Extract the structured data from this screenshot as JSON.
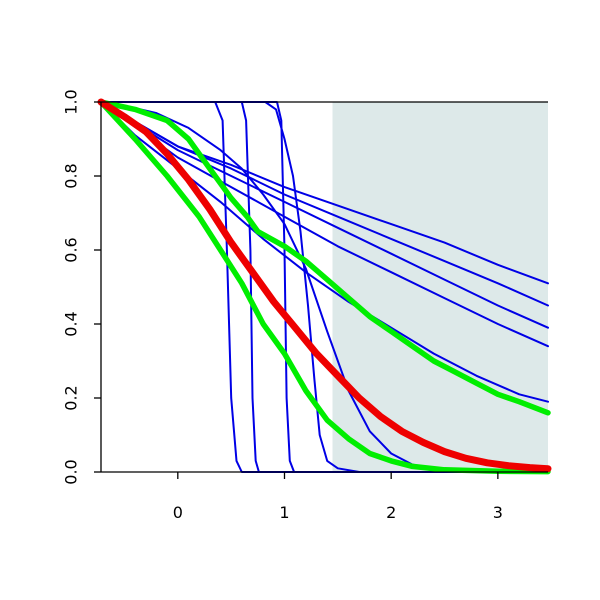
{
  "chart_data": {
    "type": "line",
    "title": "",
    "xlabel": "",
    "ylabel": "",
    "xlim": [
      -0.72,
      3.47
    ],
    "ylim": [
      0,
      1
    ],
    "grid": false,
    "legend": "none",
    "x_ticks": [
      0,
      1,
      2,
      3
    ],
    "x_tick_labels": [
      "0",
      "1",
      "2",
      "3"
    ],
    "y_ticks": [
      0,
      0.2,
      0.4,
      0.6,
      0.8,
      1
    ],
    "y_tick_labels": [
      "0.0",
      "0.2",
      "0.4",
      "0.6",
      "0.8",
      "1.0"
    ],
    "shaded_region": {
      "x": [
        1.45,
        3.47
      ],
      "color": "#dde9e9"
    },
    "colors": {
      "blue": "#0000e6",
      "green": "#00ee00",
      "red": "#ee0000"
    },
    "series": [
      {
        "color": "blue",
        "width": "thin",
        "points": [
          [
            -0.72,
            1
          ],
          [
            0.35,
            1
          ],
          [
            0.42,
            0.95
          ],
          [
            0.46,
            0.6
          ],
          [
            0.5,
            0.2
          ],
          [
            0.55,
            0.03
          ],
          [
            0.6,
            0
          ],
          [
            3.47,
            0
          ]
        ]
      },
      {
        "color": "blue",
        "width": "thin",
        "points": [
          [
            -0.72,
            1
          ],
          [
            0.6,
            1
          ],
          [
            0.64,
            0.95
          ],
          [
            0.68,
            0.6
          ],
          [
            0.7,
            0.2
          ],
          [
            0.73,
            0.03
          ],
          [
            0.76,
            0
          ],
          [
            3.47,
            0
          ]
        ]
      },
      {
        "color": "blue",
        "width": "thin",
        "points": [
          [
            -0.72,
            1
          ],
          [
            0.93,
            1
          ],
          [
            0.97,
            0.95
          ],
          [
            1.0,
            0.6
          ],
          [
            1.02,
            0.2
          ],
          [
            1.05,
            0.03
          ],
          [
            1.09,
            0
          ],
          [
            3.47,
            0
          ]
        ]
      },
      {
        "color": "blue",
        "width": "thin",
        "points": [
          [
            -0.72,
            1
          ],
          [
            0.82,
            1
          ],
          [
            0.92,
            0.98
          ],
          [
            1.0,
            0.9
          ],
          [
            1.08,
            0.8
          ],
          [
            1.15,
            0.65
          ],
          [
            1.22,
            0.45
          ],
          [
            1.28,
            0.25
          ],
          [
            1.33,
            0.1
          ],
          [
            1.4,
            0.03
          ],
          [
            1.5,
            0.01
          ],
          [
            1.7,
            0
          ],
          [
            3.47,
            0
          ]
        ]
      },
      {
        "color": "blue",
        "width": "thin",
        "points": [
          [
            -0.72,
            1
          ],
          [
            -0.5,
            0.99
          ],
          [
            -0.2,
            0.97
          ],
          [
            0.1,
            0.93
          ],
          [
            0.4,
            0.87
          ],
          [
            0.6,
            0.82
          ],
          [
            0.8,
            0.75
          ],
          [
            1.0,
            0.67
          ],
          [
            1.2,
            0.55
          ],
          [
            1.4,
            0.38
          ],
          [
            1.6,
            0.22
          ],
          [
            1.8,
            0.11
          ],
          [
            2.0,
            0.05
          ],
          [
            2.2,
            0.02
          ],
          [
            2.5,
            0.005
          ],
          [
            3.47,
            0
          ]
        ]
      },
      {
        "color": "blue",
        "width": "thin",
        "points": [
          [
            -0.72,
            1
          ],
          [
            -0.4,
            0.91
          ],
          [
            0,
            0.82
          ],
          [
            0.4,
            0.73
          ],
          [
            0.8,
            0.63
          ],
          [
            1.2,
            0.54
          ],
          [
            1.6,
            0.46
          ],
          [
            2.0,
            0.39
          ],
          [
            2.4,
            0.32
          ],
          [
            2.8,
            0.26
          ],
          [
            3.2,
            0.21
          ],
          [
            3.47,
            0.19
          ]
        ]
      },
      {
        "color": "blue",
        "width": "thin",
        "points": [
          [
            -0.72,
            1
          ],
          [
            0,
            0.85
          ],
          [
            0.5,
            0.77
          ],
          [
            1.0,
            0.69
          ],
          [
            1.5,
            0.61
          ],
          [
            2.0,
            0.54
          ],
          [
            2.5,
            0.47
          ],
          [
            3.0,
            0.4
          ],
          [
            3.47,
            0.34
          ]
        ]
      },
      {
        "color": "blue",
        "width": "thin",
        "points": [
          [
            -0.72,
            1
          ],
          [
            0,
            0.87
          ],
          [
            0.5,
            0.8
          ],
          [
            1.0,
            0.73
          ],
          [
            1.5,
            0.66
          ],
          [
            2.0,
            0.59
          ],
          [
            2.5,
            0.52
          ],
          [
            3.0,
            0.45
          ],
          [
            3.47,
            0.39
          ]
        ]
      },
      {
        "color": "blue",
        "width": "thin",
        "points": [
          [
            -0.72,
            1
          ],
          [
            0,
            0.88
          ],
          [
            0.5,
            0.82
          ],
          [
            1.0,
            0.75
          ],
          [
            1.5,
            0.69
          ],
          [
            2.0,
            0.63
          ],
          [
            2.5,
            0.57
          ],
          [
            3.0,
            0.51
          ],
          [
            3.47,
            0.45
          ]
        ]
      },
      {
        "color": "blue",
        "width": "thin",
        "points": [
          [
            -0.72,
            1
          ],
          [
            0,
            0.88
          ],
          [
            0.5,
            0.83
          ],
          [
            1.0,
            0.77
          ],
          [
            1.5,
            0.72
          ],
          [
            2.0,
            0.67
          ],
          [
            2.5,
            0.62
          ],
          [
            3.0,
            0.56
          ],
          [
            3.47,
            0.51
          ]
        ]
      },
      {
        "color": "green",
        "width": "thick",
        "points": [
          [
            -0.72,
            1
          ],
          [
            -0.4,
            0.9
          ],
          [
            -0.1,
            0.8
          ],
          [
            0.2,
            0.69
          ],
          [
            0.4,
            0.6
          ],
          [
            0.6,
            0.51
          ],
          [
            0.8,
            0.4
          ],
          [
            1.0,
            0.32
          ],
          [
            1.2,
            0.22
          ],
          [
            1.4,
            0.14
          ],
          [
            1.6,
            0.09
          ],
          [
            1.8,
            0.05
          ],
          [
            2.0,
            0.03
          ],
          [
            2.2,
            0.015
          ],
          [
            2.5,
            0.006
          ],
          [
            3.0,
            0.002
          ],
          [
            3.47,
            0.001
          ]
        ]
      },
      {
        "color": "green",
        "width": "thick",
        "points": [
          [
            -0.72,
            1
          ],
          [
            -0.4,
            0.98
          ],
          [
            -0.1,
            0.95
          ],
          [
            0.1,
            0.9
          ],
          [
            0.3,
            0.82
          ],
          [
            0.5,
            0.74
          ],
          [
            0.65,
            0.69
          ],
          [
            0.75,
            0.65
          ],
          [
            1.0,
            0.61
          ],
          [
            1.2,
            0.57
          ],
          [
            1.4,
            0.52
          ],
          [
            1.6,
            0.47
          ],
          [
            1.8,
            0.42
          ],
          [
            2.0,
            0.38
          ],
          [
            2.2,
            0.34
          ],
          [
            2.4,
            0.3
          ],
          [
            2.6,
            0.27
          ],
          [
            2.8,
            0.24
          ],
          [
            3.0,
            0.21
          ],
          [
            3.2,
            0.19
          ],
          [
            3.47,
            0.16
          ]
        ]
      },
      {
        "color": "red",
        "width": "heavy",
        "points": [
          [
            -0.72,
            1
          ],
          [
            -0.5,
            0.96
          ],
          [
            -0.3,
            0.92
          ],
          [
            -0.1,
            0.86
          ],
          [
            0.1,
            0.79
          ],
          [
            0.3,
            0.71
          ],
          [
            0.5,
            0.62
          ],
          [
            0.7,
            0.54
          ],
          [
            0.9,
            0.46
          ],
          [
            1.1,
            0.39
          ],
          [
            1.3,
            0.32
          ],
          [
            1.5,
            0.26
          ],
          [
            1.7,
            0.2
          ],
          [
            1.9,
            0.15
          ],
          [
            2.1,
            0.11
          ],
          [
            2.3,
            0.08
          ],
          [
            2.5,
            0.055
          ],
          [
            2.7,
            0.037
          ],
          [
            2.9,
            0.025
          ],
          [
            3.1,
            0.017
          ],
          [
            3.3,
            0.012
          ],
          [
            3.47,
            0.009
          ]
        ]
      }
    ]
  }
}
